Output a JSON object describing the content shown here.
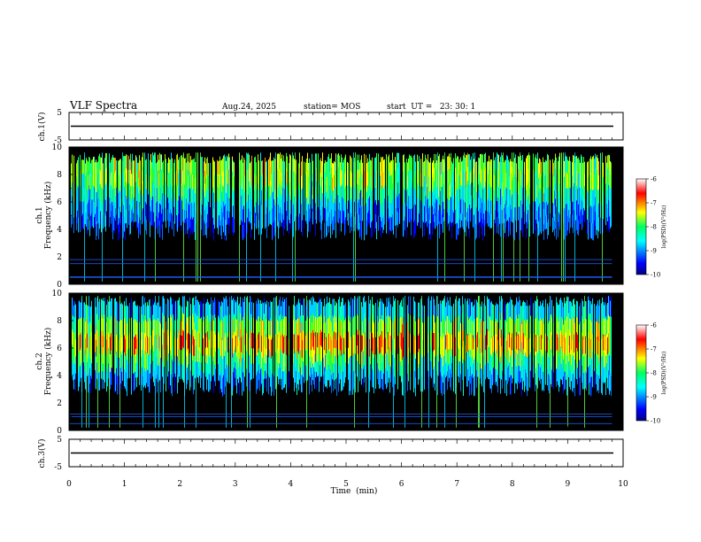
{
  "header": {
    "title": "VLF Spectra",
    "date": "Aug.24, 2025",
    "station": "station= MOS",
    "start": "start  UT =   23: 30: 1"
  },
  "chart_data": [
    {
      "type": "line",
      "name": "ch1-waveform",
      "ylabel": "ch.1(V)",
      "ylim": [
        -5,
        5
      ],
      "yticks": [
        "5",
        "-5"
      ],
      "level": 0
    },
    {
      "type": "heatmap",
      "name": "ch1-spectrogram",
      "ylabel_line1": "ch.1",
      "ylabel_line2": "Frequency  (kHz)",
      "ylim": [
        0,
        10
      ],
      "yticks": [
        "0",
        "2",
        "4",
        "6",
        "8",
        "10"
      ],
      "xlim": [
        0,
        9.8
      ],
      "colorbar": {
        "label": "log(PSD)(V²/Hz)",
        "range": [
          -10,
          -6
        ],
        "ticks": [
          "-6",
          "-7",
          "-8",
          "-9",
          "-10"
        ]
      },
      "hum_lines_khz": [
        0.5,
        0.55,
        1.5,
        1.8
      ]
    },
    {
      "type": "heatmap",
      "name": "ch2-spectrogram",
      "ylabel_line1": "ch.2",
      "ylabel_line2": "Frequency  (kHz)",
      "ylim": [
        0,
        10
      ],
      "yticks": [
        "0",
        "2",
        "4",
        "6",
        "8",
        "10"
      ],
      "xlim": [
        0,
        9.8
      ],
      "colorbar": {
        "label": "log(PSD)(V²/Hz)",
        "range": [
          -10,
          -6
        ],
        "ticks": [
          "-6",
          "-7",
          "-8",
          "-9",
          "-10"
        ]
      },
      "hum_lines_khz": [
        0.5,
        1.0,
        1.2
      ]
    },
    {
      "type": "line",
      "name": "ch3-waveform",
      "ylabel": "ch.3(V)",
      "ylim": [
        -5,
        5
      ],
      "yticks": [
        "5",
        "-5"
      ],
      "level": 0
    }
  ],
  "xaxis": {
    "label": "Time  (min)",
    "range": [
      0,
      10
    ],
    "ticks": [
      "0",
      "1",
      "2",
      "3",
      "4",
      "5",
      "6",
      "7",
      "8",
      "9",
      "10"
    ]
  }
}
